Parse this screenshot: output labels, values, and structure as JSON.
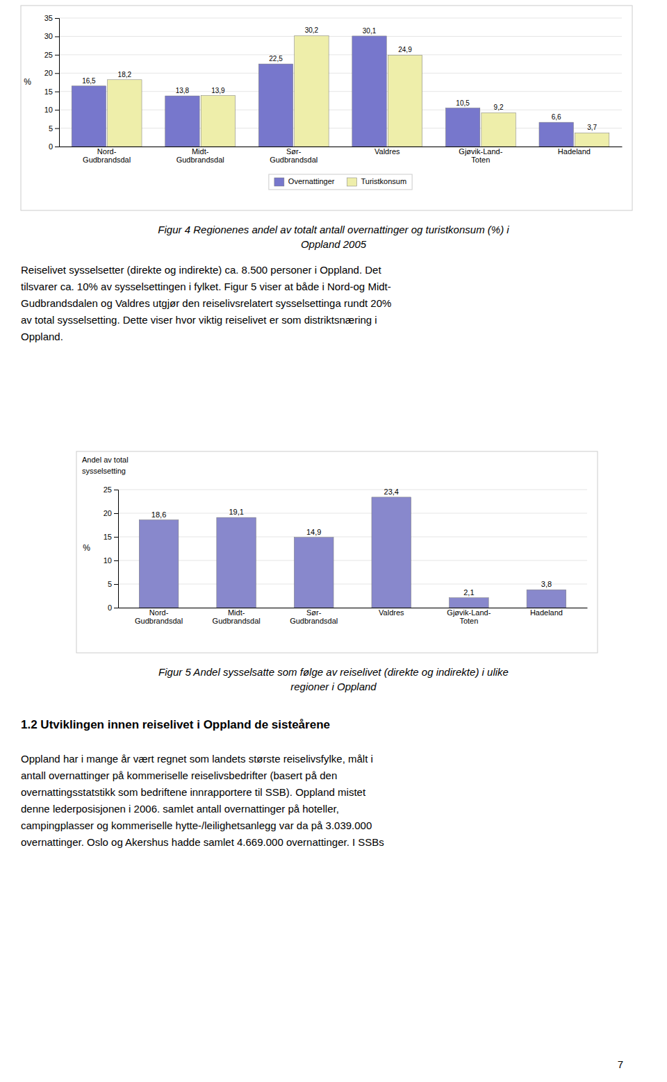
{
  "chart_data": [
    {
      "type": "bar",
      "ylabel": "%",
      "categories": [
        "Nord-\nGudbrandsdal",
        "Midt-\nGudbrandsdal",
        "Sør-\nGudbrandsdal",
        "Valdres",
        "Gjøvik-Land-\nToten",
        "Hadeland"
      ],
      "series": [
        {
          "name": "Overnattinger",
          "color": "#7777cc",
          "values": [
            16.5,
            13.8,
            22.5,
            30.1,
            10.5,
            6.6
          ],
          "value_labels": [
            "16,5",
            "13,8",
            "22,5",
            "30,1",
            "10,5",
            "6,6"
          ]
        },
        {
          "name": "Turistkonsum",
          "color": "#eeeeaa",
          "values": [
            18.2,
            13.9,
            30.2,
            24.9,
            9.2,
            3.7
          ],
          "value_labels": [
            "18,2",
            "13,9",
            "30,2",
            "24,9",
            "9,2",
            "3,7"
          ]
        }
      ],
      "ylim": [
        0,
        35
      ],
      "yticks": [
        0,
        5,
        10,
        15,
        20,
        25,
        30,
        35
      ],
      "grid": true,
      "legend": "bottom",
      "data_labels": true,
      "caption": [
        "Figur 4 Regionenes andel av totalt antall overnattinger og turistkonsum (%) i",
        "Oppland 2005"
      ]
    },
    {
      "type": "bar",
      "ylabel": "%",
      "annotations": [
        "Andel av total",
        "sysselsetting"
      ],
      "categories": [
        "Nord-\nGudbrandsdal",
        "Midt-\nGudbrandsdal",
        "Sør-\nGudbrandsdal",
        "Valdres",
        "Gjøvik-Land-\nToten",
        "Hadeland"
      ],
      "values": [
        18.6,
        19.1,
        14.9,
        23.4,
        2.1,
        3.8
      ],
      "value_labels": [
        "18,6",
        "19,1",
        "14,9",
        "23,4",
        "2,1",
        "3,8"
      ],
      "color": "#8888cc",
      "ylim": [
        0,
        25
      ],
      "yticks": [
        0,
        5,
        10,
        15,
        20,
        25
      ],
      "grid": true,
      "data_labels": true,
      "caption": [
        "Figur 5 Andel sysselsatte som følge av reiselivet (direkte og indirekte) i ulike",
        "regioner i Oppland"
      ]
    }
  ],
  "text1_lines": [
    "Reiselivet sysselsetter (direkte og indirekte) ca. 8.500 personer i Oppland. Det",
    "tilsvarer ca. 10% av sysselsettingen i fylket. Figur 5 viser at både i Nord-og Midt-",
    "Gudbrandsdalen og Valdres utgjør den reiselivsrelatert sysselsettinga rundt 20%",
    "av total sysselsetting. Dette viser hvor viktig reiselivet er som distriktsnæring i",
    "Oppland."
  ],
  "heading": "1.2 Utviklingen innen reiselivet i Oppland de sisteårene",
  "text2_lines": [
    "Oppland har i mange år vært regnet som landets største reiselivsfylke, målt i",
    "antall overnattinger på kommeriselle reiselivsbedrifter (basert på den",
    "overnattingsstatstikk som bedriftene innrapportere til SSB). Oppland mistet",
    "denne lederposisjonen i 2006. samlet antall overnattinger på hoteller,",
    "campingplasser og kommeriselle hytte-/leilighetsanlegg var da på 3.039.000",
    "overnattinger. Oslo og Akershus hadde samlet 4.669.000 overnattinger. I SSBs"
  ],
  "page_number": "7"
}
